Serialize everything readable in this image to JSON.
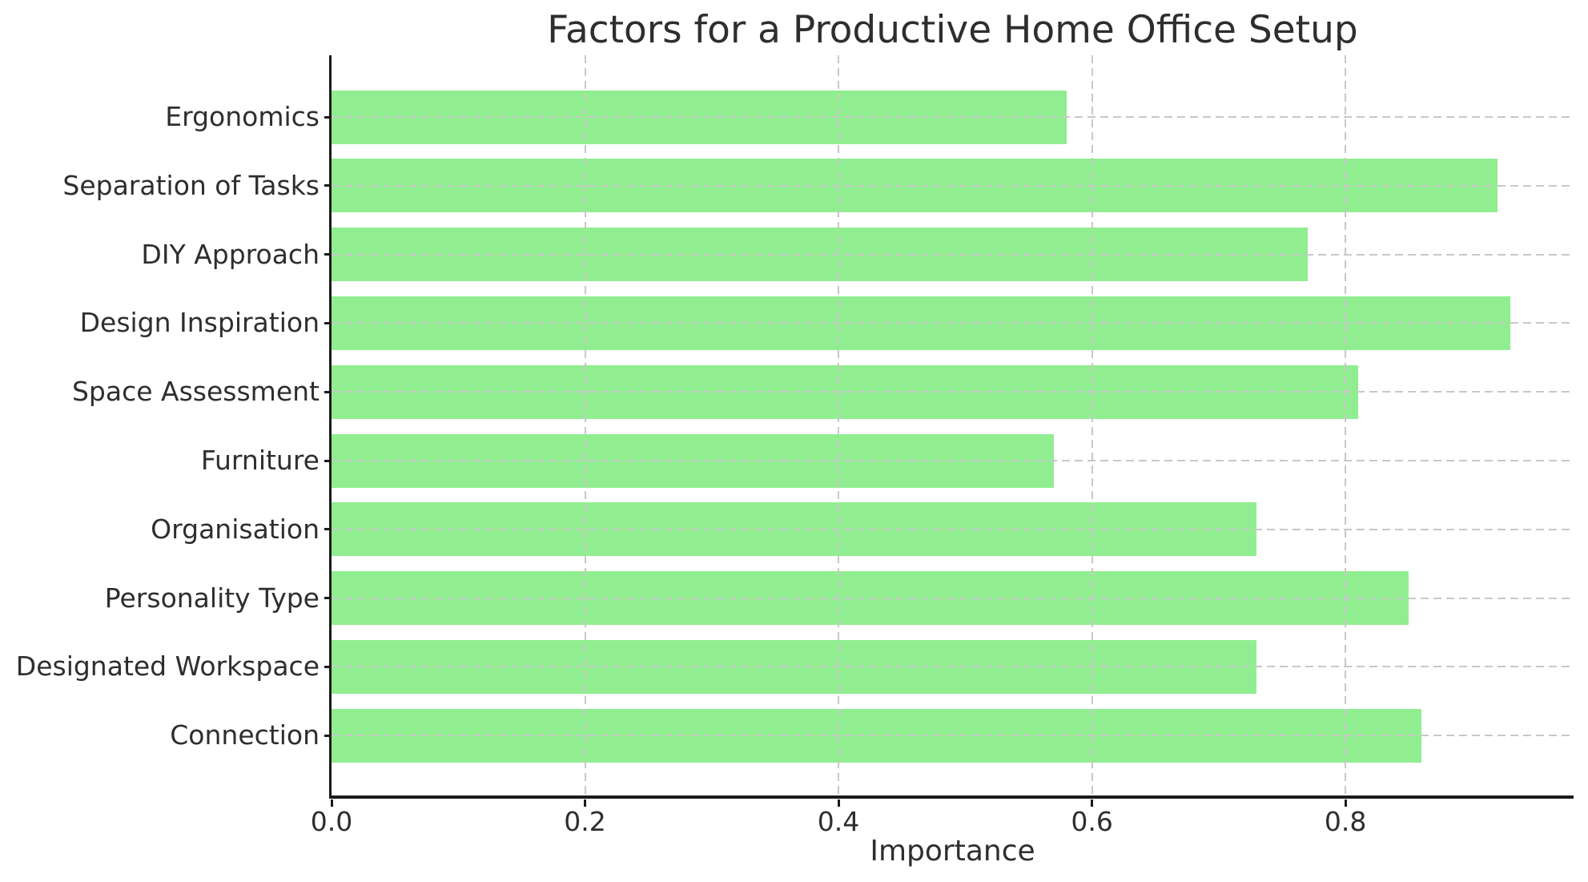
{
  "chart_data": {
    "type": "bar",
    "orientation": "horizontal",
    "title": "Factors for a Productive Home Office Setup",
    "xlabel": "Importance",
    "ylabel": "",
    "categories": [
      "Ergonomics",
      "Separation of Tasks",
      "DIY Approach",
      "Design Inspiration",
      "Space Assessment",
      "Furniture",
      "Organisation",
      "Personality Type",
      "Designated Workspace",
      "Connection"
    ],
    "values": [
      0.58,
      0.92,
      0.77,
      0.93,
      0.81,
      0.57,
      0.73,
      0.85,
      0.73,
      0.86
    ],
    "xlim": [
      0.0,
      0.98
    ],
    "xticks": [
      0.0,
      0.2,
      0.4,
      0.6,
      0.8
    ],
    "xtick_labels": [
      "0.0",
      "0.2",
      "0.4",
      "0.6",
      "0.8"
    ],
    "legend": "none",
    "grid": "dashed gridlines on both axes, drawn over bars",
    "colors": {
      "bar": "#90EE90",
      "grid": "#c8c8c8",
      "spine": "#1a1a1a",
      "text": "#2e2e2e",
      "background": "#ffffff"
    }
  }
}
